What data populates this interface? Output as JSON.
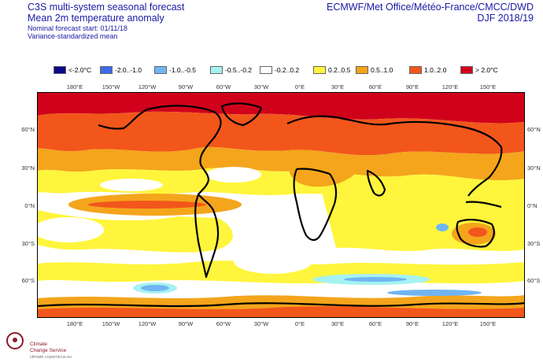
{
  "header": {
    "title1": "C3S multi-system seasonal forecast",
    "title2": "Mean 2m temperature anomaly",
    "subtitle1": "Nominal forecast start: 01/11/18",
    "subtitle2": "Variance-standardized mean",
    "right1": "ECMWF/Met Office/Météo-France/CMCC/DWD",
    "right2": "DJF 2018/19"
  },
  "legend": [
    {
      "label": "<-2.0°C",
      "color": "#0a0a8a"
    },
    {
      "label": "-2.0..-1.0",
      "color": "#3d6be8"
    },
    {
      "label": "-1.0..-0.5",
      "color": "#6fb5f2"
    },
    {
      "label": "-0.5..-0.2",
      "color": "#a6f2f2"
    },
    {
      "label": "-0.2..0.2",
      "color": "#ffffff"
    },
    {
      "label": "0.2..0.5",
      "color": "#fff53c"
    },
    {
      "label": "0.5..1.0",
      "color": "#f4a51c"
    },
    {
      "label": "1.0..2.0",
      "color": "#f2561b"
    },
    {
      "label": "> 2.0°C",
      "color": "#d0021b"
    }
  ],
  "axes": {
    "lon_top": [
      "180°E",
      "150°W",
      "120°W",
      "90°W",
      "60°W",
      "30°W",
      "0°E",
      "30°E",
      "60°E",
      "90°E",
      "120°E",
      "150°E"
    ],
    "lon_bottom": [
      "180°E",
      "150°W",
      "120°W",
      "90°W",
      "60°W",
      "30°W",
      "0°E",
      "30°E",
      "60°E",
      "90°E",
      "120°E",
      "150°E"
    ],
    "lat_left": [
      "60°N",
      "30°N",
      "0°N",
      "30°S",
      "60°S"
    ],
    "lat_right": [
      "60°N",
      "30°N",
      "0°N",
      "30°S",
      "60°S"
    ]
  },
  "logo": {
    "name_line1": "Climate",
    "name_line2": "Change Service",
    "url": "climate.copernicus.eu"
  }
}
